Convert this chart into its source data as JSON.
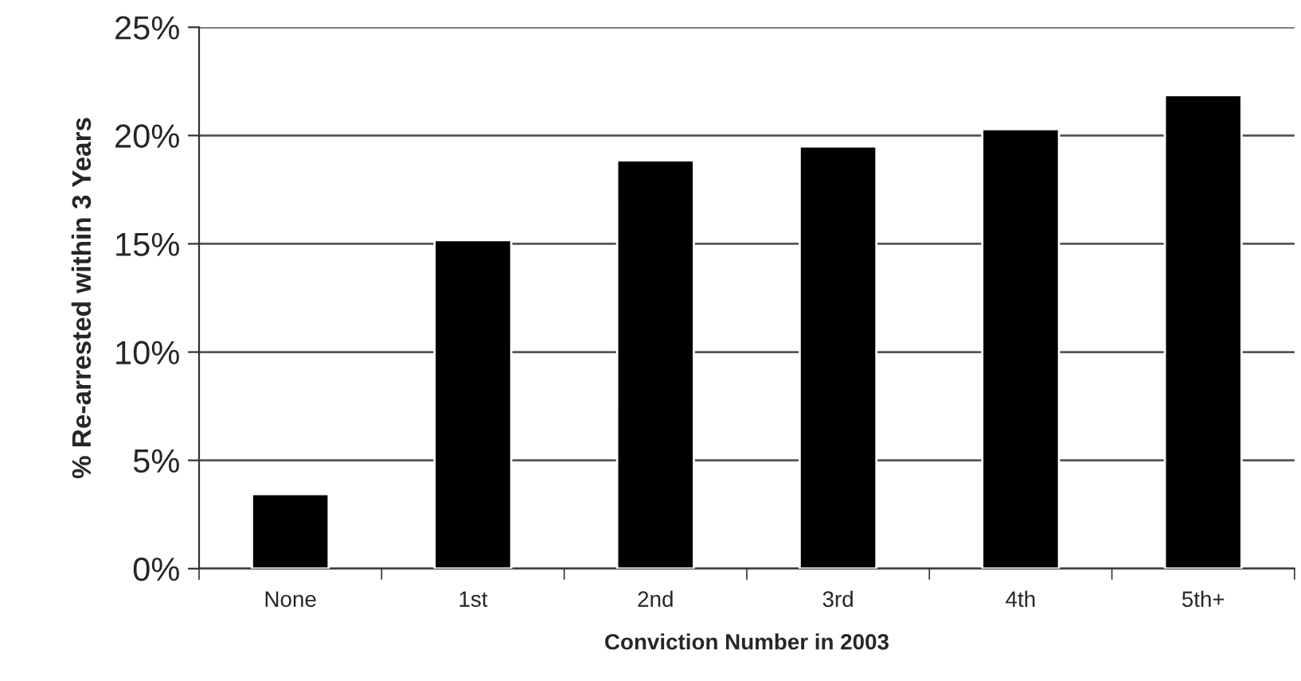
{
  "chart_data": {
    "type": "bar",
    "xlabel": "Conviction Number in 2003",
    "ylabel": "% Re-arrested within 3 Years",
    "categories": [
      "None",
      "1st",
      "2nd",
      "3rd",
      "4th",
      "5th+"
    ],
    "values": [
      3.44,
      15.17,
      18.85,
      19.49,
      20.29,
      21.86
    ],
    "color": "#000000",
    "ylim": [
      0,
      25
    ],
    "yticks": [
      {
        "value": 0,
        "label": "0%"
      },
      {
        "value": 5,
        "label": "5%"
      },
      {
        "value": 10,
        "label": "10%"
      },
      {
        "value": 15,
        "label": "15%"
      },
      {
        "value": 20,
        "label": "20%"
      },
      {
        "value": 25,
        "label": "25%"
      }
    ],
    "grid": "y"
  }
}
